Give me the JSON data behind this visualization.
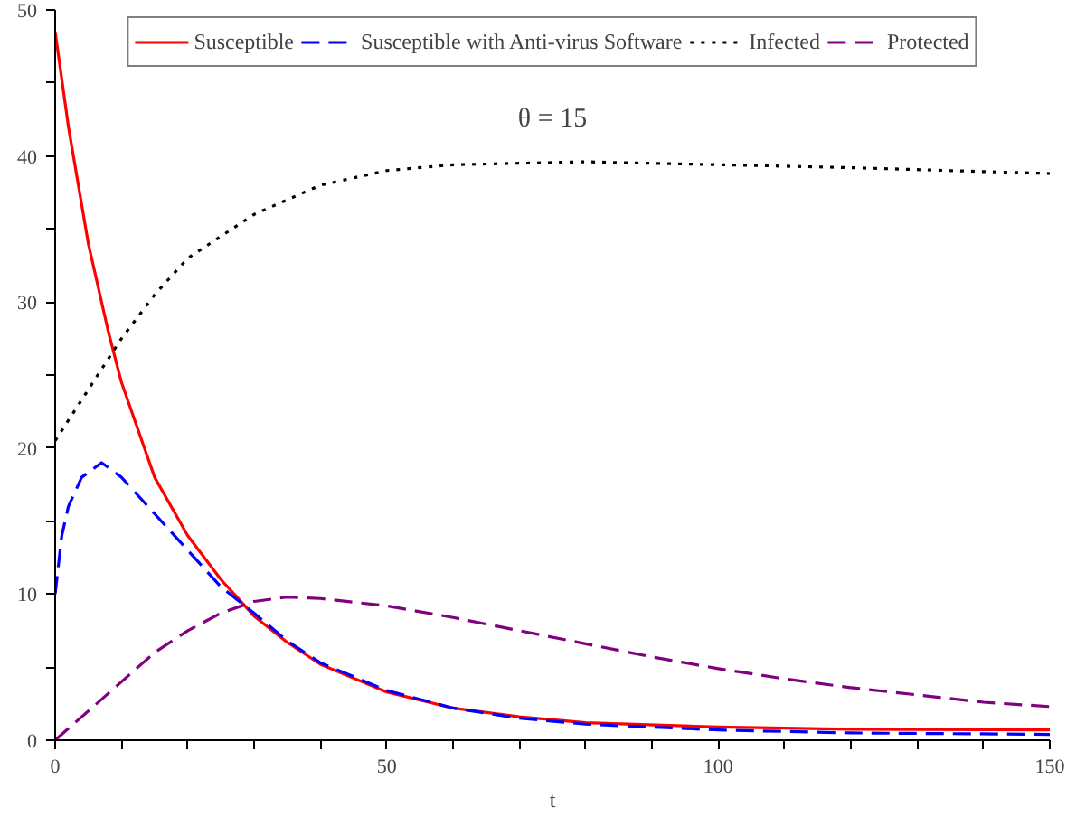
{
  "chart_data": {
    "type": "line",
    "xlabel": "t",
    "annotations": [
      "θ = 15"
    ],
    "legend": "top",
    "grid": false,
    "xlim": [
      0,
      150
    ],
    "ylim": [
      0,
      50
    ],
    "xticks": [
      0,
      {
        "value": 10,
        "label": null
      },
      {
        "value": 20,
        "label": null
      },
      {
        "value": 30,
        "label": null
      },
      {
        "value": 40,
        "label": null
      },
      50,
      {
        "value": 60,
        "label": null
      },
      {
        "value": 70,
        "label": null
      },
      {
        "value": 80,
        "label": null
      },
      {
        "value": 90,
        "label": null
      },
      100,
      {
        "value": 110,
        "label": null
      },
      {
        "value": 120,
        "label": null
      },
      {
        "value": 130,
        "label": null
      },
      {
        "value": 140,
        "label": null
      },
      150
    ],
    "yticks": [
      0,
      {
        "value": 5,
        "label": null
      },
      10,
      {
        "value": 15,
        "label": null
      },
      20,
      {
        "value": 25,
        "label": null
      },
      30,
      {
        "value": 35,
        "label": null
      },
      40,
      {
        "value": 45,
        "label": null
      },
      50
    ],
    "series": [
      {
        "name": "Susceptible",
        "color": "#ff0000",
        "line_style": "solid",
        "x": [
          0,
          2,
          5,
          8,
          10,
          15,
          20,
          25,
          30,
          35,
          40,
          50,
          60,
          70,
          80,
          100,
          120,
          150
        ],
        "values": [
          48.5,
          42,
          34,
          28,
          24.5,
          18,
          14,
          11,
          8.5,
          6.7,
          5.2,
          3.3,
          2.2,
          1.6,
          1.2,
          0.9,
          0.75,
          0.7
        ]
      },
      {
        "name": "Susceptible with Anti-virus Software",
        "color": "#0000ff",
        "line_style": "dashed",
        "x": [
          0,
          1,
          2,
          4,
          7,
          10,
          15,
          20,
          25,
          30,
          35,
          40,
          50,
          60,
          70,
          80,
          100,
          120,
          150
        ],
        "values": [
          10,
          14,
          16,
          18,
          19,
          18,
          15.5,
          13,
          10.5,
          8.7,
          6.8,
          5.3,
          3.4,
          2.2,
          1.5,
          1.1,
          0.7,
          0.5,
          0.4
        ]
      },
      {
        "name": "Infected",
        "color": "#000000",
        "line_style": "dotted",
        "x": [
          0,
          5,
          10,
          15,
          20,
          30,
          40,
          50,
          60,
          80,
          100,
          120,
          150
        ],
        "values": [
          20.5,
          24,
          27.5,
          30.5,
          33,
          36,
          38,
          39,
          39.4,
          39.6,
          39.4,
          39.2,
          38.8
        ]
      },
      {
        "name": "Protected",
        "color": "#800080",
        "line_style": "dashed",
        "x": [
          0,
          5,
          10,
          15,
          20,
          25,
          30,
          35,
          40,
          50,
          60,
          70,
          80,
          90,
          100,
          110,
          120,
          130,
          140,
          150
        ],
        "values": [
          0,
          2,
          4,
          6,
          7.5,
          8.7,
          9.5,
          9.8,
          9.7,
          9.2,
          8.4,
          7.5,
          6.6,
          5.7,
          4.9,
          4.2,
          3.6,
          3.1,
          2.6,
          2.3
        ]
      }
    ]
  }
}
